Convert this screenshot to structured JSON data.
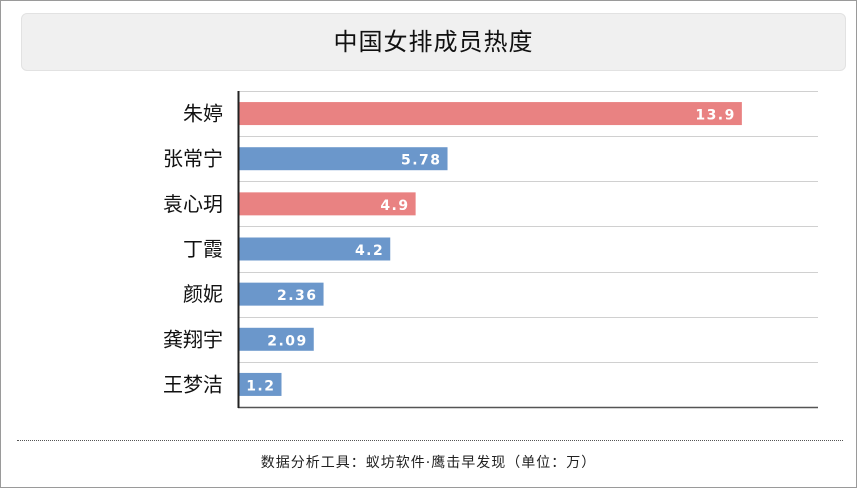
{
  "chart_data": {
    "type": "bar",
    "orientation": "horizontal",
    "title": "中国女排成员热度",
    "categories": [
      "朱婷",
      "张常宁",
      "袁心玥",
      "丁霞",
      "颜妮",
      "龚翔宇",
      "王梦洁"
    ],
    "values": [
      13.9,
      5.78,
      4.9,
      4.2,
      2.36,
      2.09,
      1.2
    ],
    "value_labels": [
      "13.9",
      "5.78",
      "4.9",
      "4.2",
      "2.36",
      "2.09",
      "1.2"
    ],
    "bar_colors": [
      "#e98282",
      "#6b97cb",
      "#e98282",
      "#6b97cb",
      "#6b97cb",
      "#6b97cb",
      "#6b97cb"
    ],
    "xlim": [
      0,
      16
    ],
    "grid": true,
    "xlabel": "",
    "ylabel": ""
  },
  "footer": {
    "text": "数据分析工具：蚁坊软件·鹰击早发现（单位：万）"
  }
}
